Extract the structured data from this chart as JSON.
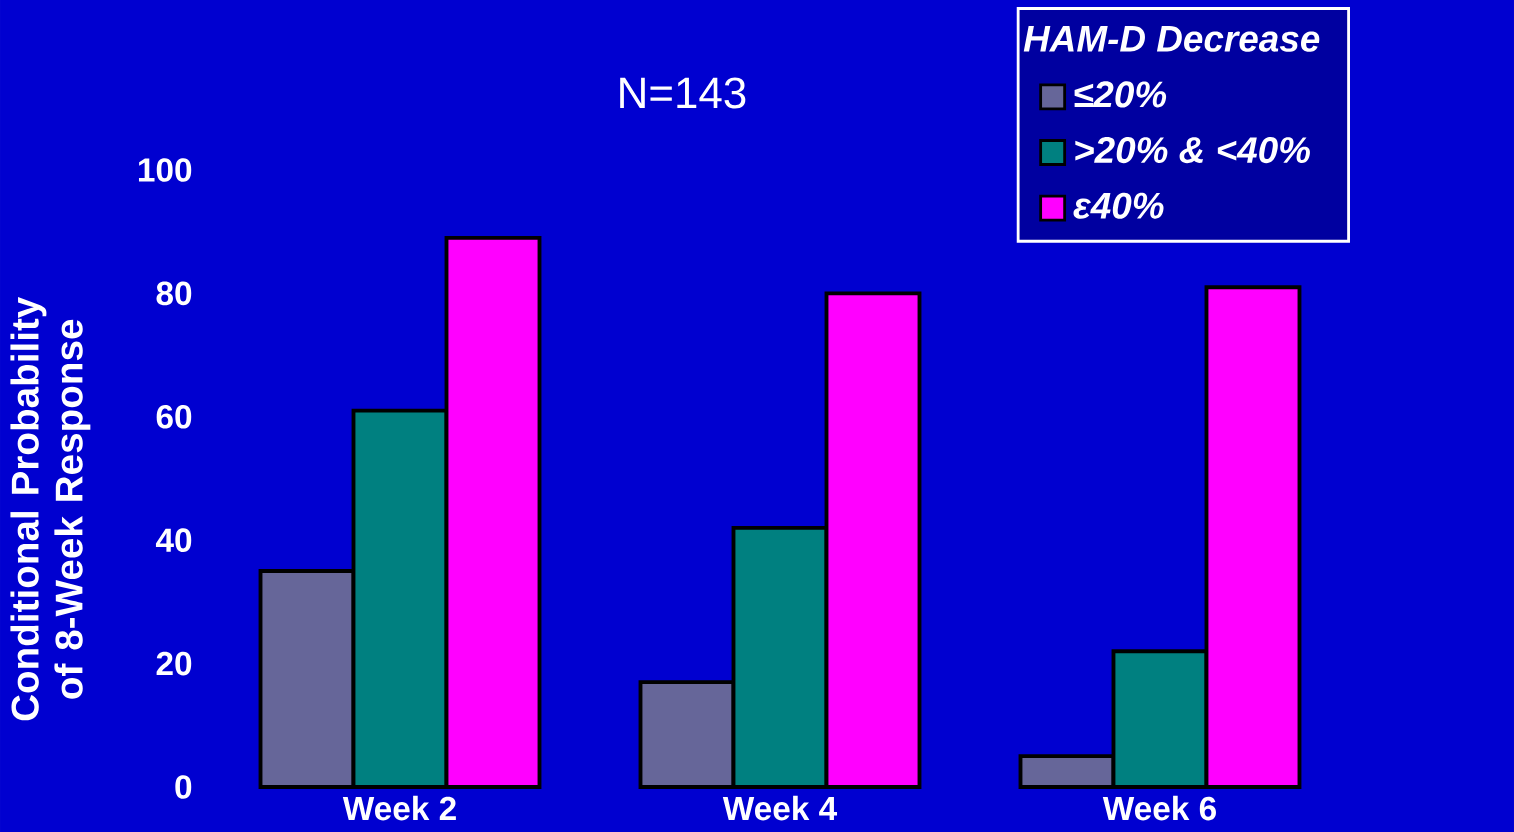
{
  "chart_data": {
    "type": "bar",
    "title": "N=143",
    "ylabel": "Conditional Probability of 8-Week Response",
    "legend_title": "HAM-D Decrease",
    "categories": [
      "Week 2",
      "Week 4",
      "Week 6"
    ],
    "series": [
      {
        "name": "≤20%",
        "color": "#666699",
        "values": [
          35,
          17,
          5
        ]
      },
      {
        "name": ">20% & <40%",
        "color": "#008080",
        "values": [
          61,
          42,
          22
        ]
      },
      {
        "name": "ε40%",
        "color": "#ff00ff",
        "values": [
          89,
          80,
          81
        ]
      }
    ],
    "ylim": [
      0,
      100
    ],
    "yticks": [
      0,
      20,
      40,
      60,
      80,
      100
    ],
    "legend": "top right"
  }
}
